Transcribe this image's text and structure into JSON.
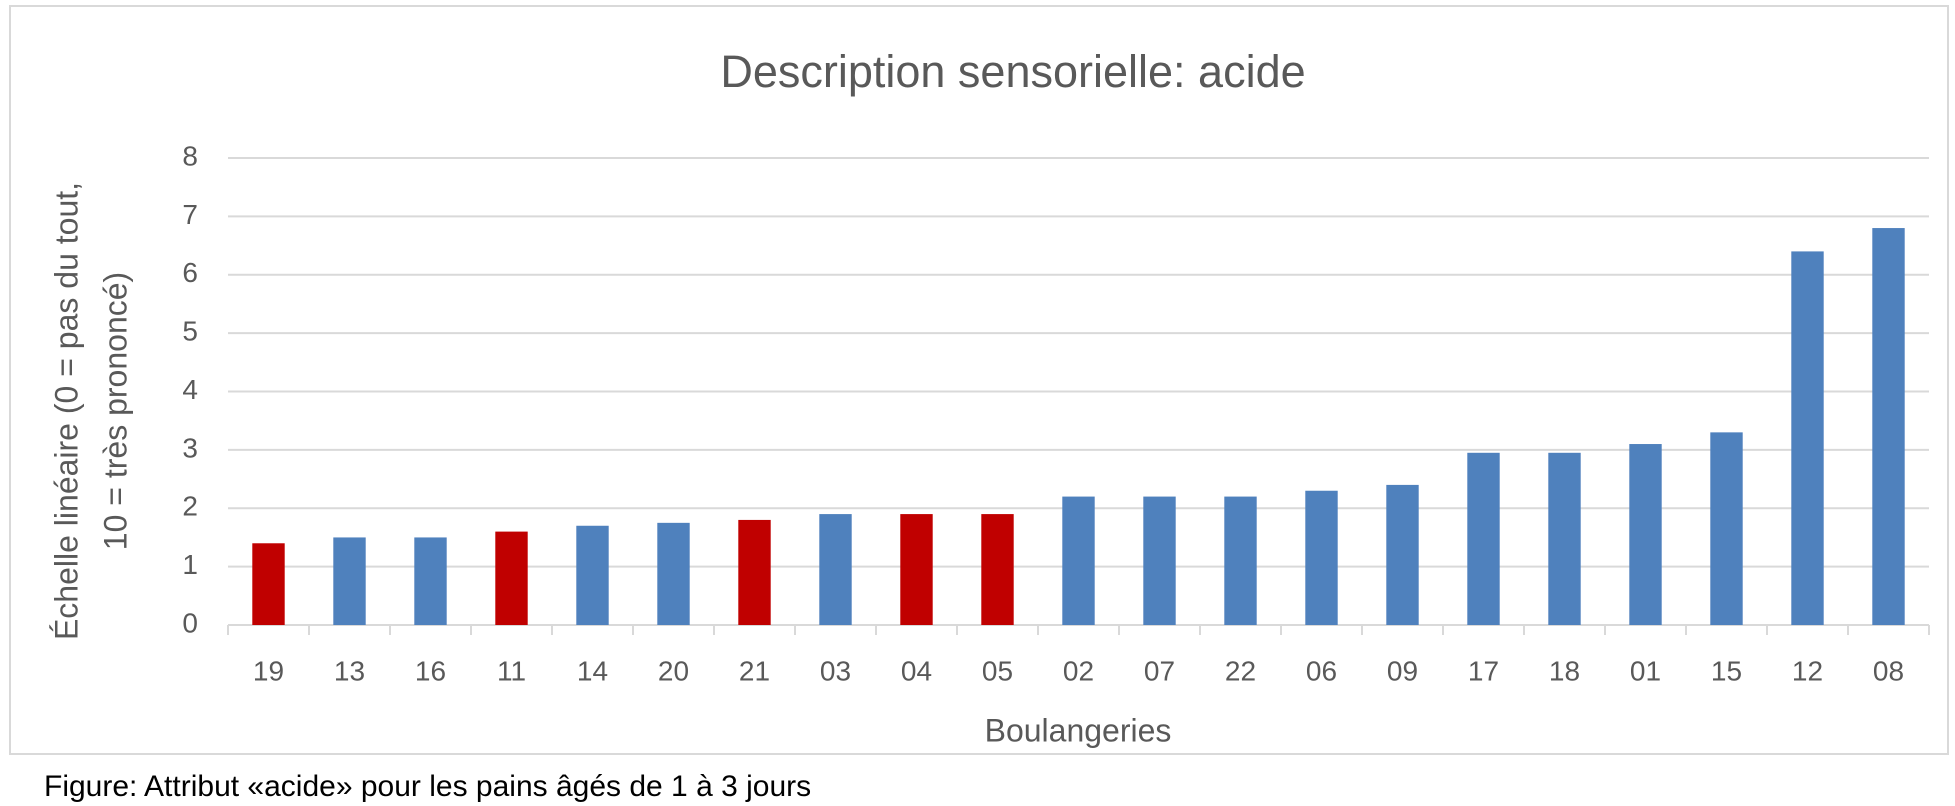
{
  "chart_data": {
    "type": "bar",
    "title": "Description sensorielle: acide",
    "xlabel": "Boulangeries",
    "ylabel": [
      "Échelle linéaire  (0 = pas du tout,",
      "10 = très prononcé)"
    ],
    "caption": "Figure: Attribut «acide» pour les pains âgés de 1 à 3 jours",
    "categories": [
      "19",
      "13",
      "16",
      "11",
      "14",
      "20",
      "21",
      "03",
      "04",
      "05",
      "02",
      "07",
      "22",
      "06",
      "09",
      "17",
      "18",
      "01",
      "15",
      "12",
      "08"
    ],
    "values": [
      1.4,
      1.5,
      1.5,
      1.6,
      1.7,
      1.75,
      1.8,
      1.9,
      1.9,
      1.9,
      2.2,
      2.2,
      2.2,
      2.3,
      2.4,
      2.95,
      2.95,
      3.1,
      3.3,
      6.4,
      6.8
    ],
    "colors": [
      "#c00000",
      "#4f81bd",
      "#4f81bd",
      "#c00000",
      "#4f81bd",
      "#4f81bd",
      "#c00000",
      "#4f81bd",
      "#c00000",
      "#c00000",
      "#4f81bd",
      "#4f81bd",
      "#4f81bd",
      "#4f81bd",
      "#4f81bd",
      "#4f81bd",
      "#4f81bd",
      "#4f81bd",
      "#4f81bd",
      "#4f81bd",
      "#4f81bd"
    ],
    "ylim": [
      0,
      8
    ],
    "yticks": [
      0,
      1,
      2,
      3,
      4,
      5,
      6,
      7,
      8
    ],
    "grid": true
  }
}
